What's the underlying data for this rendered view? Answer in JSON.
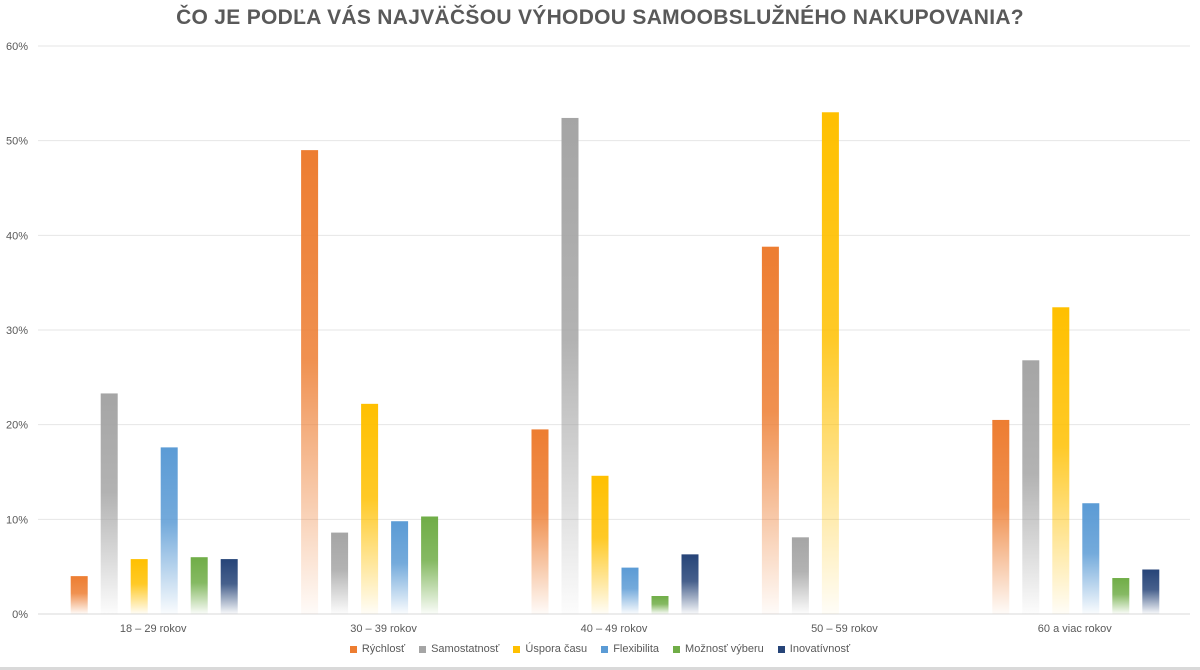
{
  "chart_data": {
    "type": "bar",
    "title": "ČO JE PODĽA VÁS NAJVÄČŠOU VÝHODOU SAMOOBSLUŽNÉHO NAKUPOVANIA?",
    "categories": [
      "18 – 29 rokov",
      "30 – 39 rokov",
      "40 – 49 rokov",
      "50 – 59 rokov",
      "60 a viac rokov"
    ],
    "series": [
      {
        "name": "Rýchlosť",
        "color": "#ED7D31",
        "values": [
          4.0,
          49.0,
          19.5,
          38.8,
          20.5
        ]
      },
      {
        "name": "Samostatnosť",
        "color": "#A5A5A5",
        "values": [
          23.3,
          8.6,
          52.4,
          8.1,
          26.8
        ]
      },
      {
        "name": "Úspora času",
        "color": "#FFC000",
        "values": [
          5.8,
          22.2,
          14.6,
          53.0,
          32.4
        ]
      },
      {
        "name": "Flexibilita",
        "color": "#5B9BD5",
        "values": [
          17.6,
          9.8,
          4.9,
          0,
          11.7
        ]
      },
      {
        "name": "Možnosť výberu",
        "color": "#70AD47",
        "values": [
          6.0,
          10.3,
          1.9,
          0,
          3.8
        ]
      },
      {
        "name": "Inovatívnosť",
        "color": "#264478",
        "values": [
          5.8,
          0,
          6.3,
          0,
          4.7
        ]
      }
    ],
    "ylim": [
      0,
      60
    ],
    "yticks": [
      "0%",
      "10%",
      "20%",
      "30%",
      "40%",
      "50%",
      "60%"
    ],
    "ytick_values": [
      0,
      10,
      20,
      30,
      40,
      50,
      60
    ],
    "grid": true,
    "legend_position": "bottom",
    "xlabel": "",
    "ylabel": ""
  }
}
